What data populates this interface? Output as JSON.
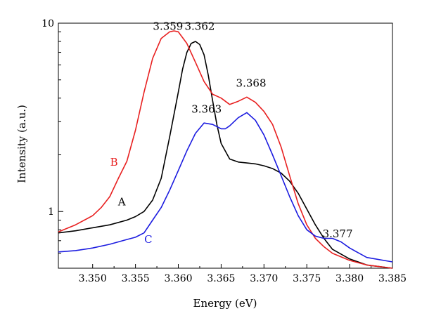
{
  "chart_data": {
    "type": "line",
    "title": "",
    "xlabel": "Energy (eV)",
    "ylabel": "Intensity (a.u.)",
    "xlim": [
      3.346,
      3.385
    ],
    "ylim": [
      0.5,
      10
    ],
    "yscale": "log",
    "grid": false,
    "x_ticks": [
      "3.350",
      "3.355",
      "3.360",
      "3.365",
      "3.370",
      "3.375",
      "3.380",
      "3.385"
    ],
    "y_ticks": [
      "1",
      "10"
    ],
    "series": [
      {
        "name": "A",
        "color": "#000000",
        "x": [
          3.346,
          3.348,
          3.35,
          3.352,
          3.354,
          3.355,
          3.356,
          3.357,
          3.358,
          3.359,
          3.36,
          3.3605,
          3.361,
          3.3615,
          3.362,
          3.3625,
          3.363,
          3.3635,
          3.364,
          3.3645,
          3.365,
          3.366,
          3.367,
          3.368,
          3.369,
          3.37,
          3.371,
          3.372,
          3.373,
          3.374,
          3.375,
          3.376,
          3.377,
          3.378,
          3.38,
          3.382,
          3.385
        ],
        "y": [
          0.77,
          0.79,
          0.82,
          0.85,
          0.9,
          0.94,
          1.0,
          1.15,
          1.5,
          2.5,
          4.3,
          5.7,
          7.0,
          7.8,
          8.0,
          7.7,
          6.8,
          5.3,
          3.9,
          2.9,
          2.3,
          1.9,
          1.83,
          1.81,
          1.79,
          1.75,
          1.69,
          1.6,
          1.45,
          1.25,
          1.03,
          0.85,
          0.72,
          0.63,
          0.56,
          0.52,
          0.5
        ]
      },
      {
        "name": "B",
        "color": "#e82020",
        "x": [
          3.346,
          3.348,
          3.35,
          3.351,
          3.352,
          3.353,
          3.354,
          3.355,
          3.356,
          3.357,
          3.358,
          3.359,
          3.3595,
          3.36,
          3.361,
          3.362,
          3.363,
          3.364,
          3.365,
          3.366,
          3.367,
          3.368,
          3.369,
          3.37,
          3.371,
          3.372,
          3.373,
          3.374,
          3.375,
          3.376,
          3.377,
          3.378,
          3.38,
          3.382,
          3.385
        ],
        "y": [
          0.78,
          0.85,
          0.95,
          1.05,
          1.2,
          1.5,
          1.85,
          2.7,
          4.3,
          6.5,
          8.3,
          9.0,
          9.1,
          9.0,
          7.8,
          6.2,
          4.9,
          4.2,
          4.0,
          3.7,
          3.85,
          4.05,
          3.8,
          3.4,
          2.9,
          2.2,
          1.55,
          1.1,
          0.85,
          0.72,
          0.65,
          0.6,
          0.55,
          0.52,
          0.5
        ]
      },
      {
        "name": "C",
        "color": "#1c1ce0",
        "x": [
          3.346,
          3.348,
          3.35,
          3.352,
          3.354,
          3.355,
          3.356,
          3.357,
          3.358,
          3.359,
          3.36,
          3.361,
          3.362,
          3.363,
          3.364,
          3.365,
          3.3655,
          3.366,
          3.367,
          3.368,
          3.369,
          3.37,
          3.371,
          3.372,
          3.373,
          3.374,
          3.375,
          3.376,
          3.377,
          3.378,
          3.379,
          3.38,
          3.382,
          3.385
        ],
        "y": [
          0.61,
          0.62,
          0.64,
          0.67,
          0.71,
          0.73,
          0.77,
          0.9,
          1.05,
          1.3,
          1.65,
          2.1,
          2.6,
          2.95,
          2.9,
          2.75,
          2.75,
          2.85,
          3.15,
          3.35,
          3.05,
          2.55,
          2.0,
          1.55,
          1.2,
          0.95,
          0.8,
          0.74,
          0.72,
          0.72,
          0.69,
          0.64,
          0.57,
          0.54
        ]
      }
    ],
    "annotations": [
      {
        "text": "3.359",
        "x": 3.3588,
        "y": 9.2,
        "color": "#000000"
      },
      {
        "text": "3.362",
        "x": 3.3625,
        "y": 9.2,
        "color": "#000000"
      },
      {
        "text": "3.368",
        "x": 3.3685,
        "y": 4.6,
        "color": "#000000"
      },
      {
        "text": "3.363",
        "x": 3.3633,
        "y": 3.35,
        "color": "#000000"
      },
      {
        "text": "3.377",
        "x": 3.3786,
        "y": 0.73,
        "color": "#000000"
      },
      {
        "text": "B",
        "x": 3.3525,
        "y": 1.75,
        "color": "#e82020"
      },
      {
        "text": "A",
        "x": 3.3534,
        "y": 1.08,
        "color": "#000000"
      },
      {
        "text": "C",
        "x": 3.3565,
        "y": 0.68,
        "color": "#1c1ce0"
      }
    ]
  }
}
